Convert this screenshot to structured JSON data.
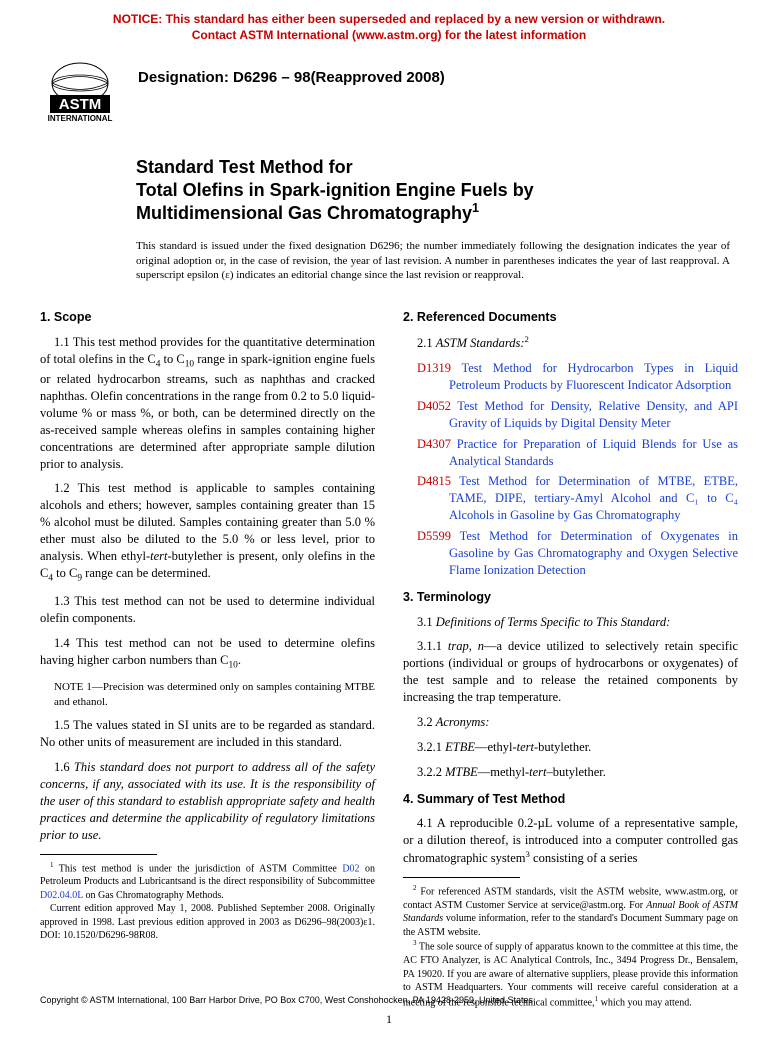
{
  "notice": {
    "color": "#c80000",
    "line1": "NOTICE: This standard has either been superseded and replaced by a new version or withdrawn.",
    "line2": "Contact ASTM International (www.astm.org) for the latest information"
  },
  "logo": {
    "topText": "ASTM",
    "bottomText": "INTERNATIONAL",
    "width": 86,
    "height": 60
  },
  "designation": "Designation: D6296 – 98(Reapproved 2008)",
  "title": {
    "lead": "Standard Test Method for",
    "main1": "Total Olefins in Spark-ignition Engine Fuels by",
    "main2": "Multidimensional Gas Chromatography",
    "sup": "1"
  },
  "title_note": "This standard is issued under the fixed designation D6296; the number immediately following the designation indicates the year of original adoption or, in the case of revision, the year of last revision. A number in parentheses indicates the year of last reapproval. A superscript epsilon (ε) indicates an editorial change since the last revision or reapproval.",
  "left": {
    "scope_head": "1. Scope",
    "p1_1a": "1.1 This test method provides for the quantitative determination of total olefins in the C",
    "p1_1_sub1": "4",
    "p1_1b": " to C",
    "p1_1_sub2": "10",
    "p1_1c": " range in spark-ignition engine fuels or related hydrocarbon streams, such as naphthas and cracked naphthas. Olefin concentrations in the range from 0.2 to 5.0 liquid-volume % or mass %, or both, can be determined directly on the as-received sample whereas olefins in samples containing higher concentrations are determined after appropriate sample dilution prior to analysis.",
    "p1_2a": "1.2 This test method is applicable to samples containing alcohols and ethers; however, samples containing greater than 15 % alcohol must be diluted. Samples containing greater than 5.0 % ether must also be diluted to the 5.0 % or less level, prior to analysis. When ethyl-",
    "p1_2_ital": "tert",
    "p1_2b": "-butylether is present, only olefins in the C",
    "p1_2_sub1": "4",
    "p1_2c": " to C",
    "p1_2_sub2": "9",
    "p1_2d": " range can be determined.",
    "p1_3": "1.3 This test method can not be used to determine individual olefin components.",
    "p1_4a": "1.4 This test method can not be used to determine olefins having higher carbon numbers than C",
    "p1_4_sub": "10",
    "p1_4b": ".",
    "note1_label": "NOTE",
    "note1_num": " 1—",
    "note1": "Precision was determined only on samples containing MTBE and ethanol.",
    "p1_5": "1.5 The values stated in SI units are to be regarded as standard. No other units of measurement are included in this standard.",
    "p1_6": "1.6 This standard does not purport to address all of the safety concerns, if any, associated with its use. It is the responsibility of the user of this standard to establish appropriate safety and health practices and determine the applicability of regulatory limitations prior to use.",
    "fn1a": " This test method is under the jurisdiction of ASTM Committee ",
    "fn1_link1": "D02",
    "fn1b": " on Petroleum Products and Lubricantsand is the direct responsibility of Subcommittee ",
    "fn1_link2": "D02.04.0L",
    "fn1c": " on Gas Chromatography Methods.",
    "fn1d": "Current edition approved May 1, 2008. Published September 2008. Originally approved in 1998. Last previous edition approved in 2003 as D6296–98(2003)ε1. DOI: 10.1520/D6296-98R08."
  },
  "right": {
    "ref_head": "2. Referenced Documents",
    "p2_1": "2.1 ",
    "p2_1_ital": "ASTM Standards:",
    "p2_1_sup": "2",
    "refs": [
      {
        "code": "D1319",
        "text": " Test Method for Hydrocarbon Types in Liquid Petroleum Products by Fluorescent Indicator Adsorption"
      },
      {
        "code": "D4052",
        "text": " Test Method for Density, Relative Density, and API Gravity of Liquids by Digital Density Meter"
      },
      {
        "code": "D4307",
        "text": " Practice for Preparation of Liquid Blends for Use as Analytical Standards"
      },
      {
        "code": "D4815",
        "text": " Test Method for Determination of MTBE, ETBE, TAME, DIPE, tertiary-Amyl Alcohol and C₁ to C₄ Alcohols in Gasoline by Gas Chromatography"
      },
      {
        "code": "D5599",
        "text": " Test Method for Determination of Oxygenates in Gasoline by Gas Chromatography and Oxygen Selective Flame Ionization Detection"
      }
    ],
    "term_head": "3. Terminology",
    "p3_1": "3.1 ",
    "p3_1_ital": "Definitions of Terms Specific to This Standard:",
    "p3_1_1a": "3.1.1 ",
    "p3_1_1_ital": "trap, n",
    "p3_1_1b": "—a device utilized to selectively retain specific portions (individual or groups of hydrocarbons or oxygenates) of the test sample and to release the retained components by increasing the trap temperature.",
    "p3_2": "3.2 ",
    "p3_2_ital": "Acronyms:",
    "p3_2_1a": "3.2.1 ",
    "p3_2_1_ital": "ETBE",
    "p3_2_1b": "—ethyl-",
    "p3_2_1_ital2": "tert",
    "p3_2_1c": "-butylether.",
    "p3_2_2a": "3.2.2 ",
    "p3_2_2_ital": "MTBE",
    "p3_2_2b": "—methyl-",
    "p3_2_2_ital2": "tert",
    "p3_2_2c": "–butylether.",
    "sum_head": "4. Summary of Test Method",
    "p4_1a": "4.1 A reproducible 0.2-µL volume of a representative sample, or a dilution thereof, is introduced into a computer controlled gas chromatographic system",
    "p4_1_sup": "3",
    "p4_1b": " consisting of a series",
    "fn2_sup": "2",
    "fn2a": " For referenced ASTM standards, visit the ASTM website, www.astm.org, or contact ASTM Customer Service at service@astm.org. For ",
    "fn2_ital": "Annual Book of ASTM Standards",
    "fn2b": " volume information, refer to the standard's Document Summary page on the ASTM website.",
    "fn3_sup": "3",
    "fn3a": " The sole source of supply of apparatus known to the committee at this time, the AC FTO Analyzer, is AC Analytical Controls, Inc., 3494 Progress Dr., Bensalem, PA 19020. If you are aware of alternative suppliers, please provide this information to ASTM Headquarters. Your comments will receive careful consideration at a meeting of the responsible technical committee,",
    "fn3_sup2": "1",
    "fn3b": " which you may attend."
  },
  "copyright": "Copyright © ASTM International, 100 Barr Harbor Drive, PO Box C700, West Conshohocken, PA 19428-2959, United States",
  "pagenum": "1"
}
